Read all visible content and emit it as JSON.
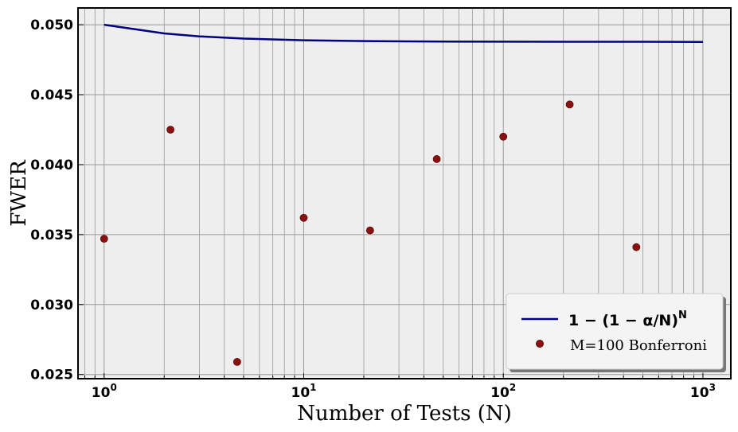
{
  "chart_data": {
    "type": "line",
    "xlabel": "Number of Tests (N)",
    "ylabel": "FWER",
    "xscale": "log",
    "xlim": [
      0.74,
      1380
    ],
    "ylim": [
      0.0247,
      0.0512
    ],
    "grid": true,
    "legend_position": "bottom-right",
    "x_ticks": [
      {
        "value": 1,
        "base": "10",
        "exp": "0"
      },
      {
        "value": 10,
        "base": "10",
        "exp": "1"
      },
      {
        "value": 100,
        "base": "10",
        "exp": "2"
      },
      {
        "value": 1000,
        "base": "10",
        "exp": "3"
      }
    ],
    "y_ticks": [
      {
        "value": 0.025,
        "label": "0.025"
      },
      {
        "value": 0.03,
        "label": "0.030"
      },
      {
        "value": 0.035,
        "label": "0.035"
      },
      {
        "value": 0.04,
        "label": "0.040"
      },
      {
        "value": 0.045,
        "label": "0.045"
      },
      {
        "value": 0.05,
        "label": "0.050"
      }
    ],
    "series": [
      {
        "name": "1 − (1 − α/N)^N",
        "name_parts": {
          "main": "1 − (1 − α/N)",
          "sup": "N"
        },
        "type": "line",
        "color": "#000080",
        "x": [
          1,
          2,
          3,
          5,
          10,
          20,
          50,
          100,
          200,
          500,
          1000
        ],
        "y": [
          0.05,
          0.04938,
          0.04917,
          0.04901,
          0.04889,
          0.04883,
          0.0488,
          0.04879,
          0.04878,
          0.04878,
          0.04877
        ]
      },
      {
        "name": "M=100 Bonferroni",
        "type": "scatter",
        "color": "#8b1010",
        "x": [
          1,
          2.15,
          4.64,
          10,
          21.5,
          46.4,
          100,
          215,
          464
        ],
        "y": [
          0.0347,
          0.0425,
          0.0259,
          0.0362,
          0.0353,
          0.0404,
          0.042,
          0.0443,
          0.0341
        ]
      }
    ]
  }
}
